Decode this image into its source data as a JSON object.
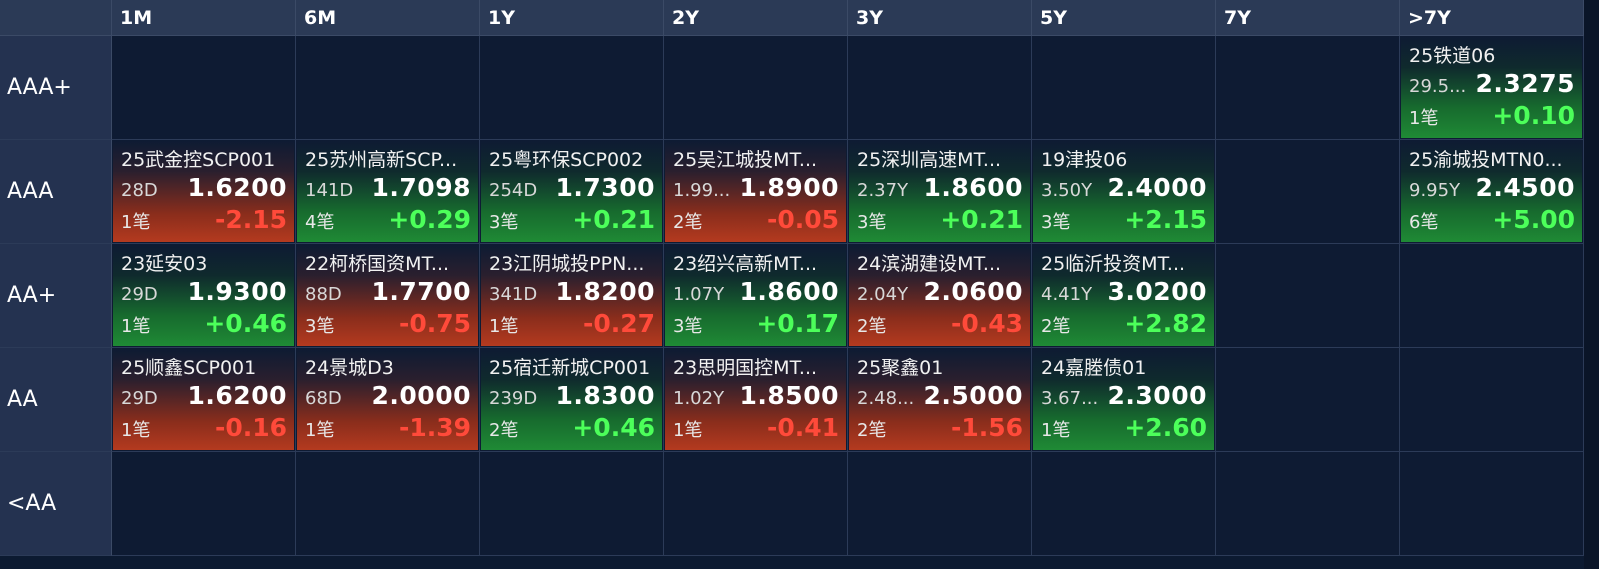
{
  "columns": [
    "1M",
    "6M",
    "1Y",
    "2Y",
    "3Y",
    "5Y",
    "7Y",
    ">7Y"
  ],
  "rows": [
    {
      "label": "AAA+",
      "cells": [
        null,
        null,
        null,
        null,
        null,
        null,
        null,
        {
          "name": "25铁道06",
          "term": "29.5...",
          "yield": "2.3275",
          "count": "1笔",
          "change": "+0.10",
          "dir": "up"
        }
      ]
    },
    {
      "label": "AAA",
      "cells": [
        {
          "name": "25武金控SCP001",
          "term": "28D",
          "yield": "1.6200",
          "count": "1笔",
          "change": "-2.15",
          "dir": "down"
        },
        {
          "name": "25苏州高新SCP...",
          "term": "141D",
          "yield": "1.7098",
          "count": "4笔",
          "change": "+0.29",
          "dir": "up"
        },
        {
          "name": "25粤环保SCP002",
          "term": "254D",
          "yield": "1.7300",
          "count": "3笔",
          "change": "+0.21",
          "dir": "up"
        },
        {
          "name": "25吴江城投MT...",
          "term": "1.99...",
          "yield": "1.8900",
          "count": "2笔",
          "change": "-0.05",
          "dir": "down"
        },
        {
          "name": "25深圳高速MT...",
          "term": "2.37Y",
          "yield": "1.8600",
          "count": "3笔",
          "change": "+0.21",
          "dir": "up"
        },
        {
          "name": "19津投06",
          "term": "3.50Y",
          "yield": "2.4000",
          "count": "3笔",
          "change": "+2.15",
          "dir": "up"
        },
        null,
        {
          "name": "25渝城投MTN0...",
          "term": "9.95Y",
          "yield": "2.4500",
          "count": "6笔",
          "change": "+5.00",
          "dir": "up"
        }
      ]
    },
    {
      "label": "AA+",
      "cells": [
        {
          "name": "23延安03",
          "term": "29D",
          "yield": "1.9300",
          "count": "1笔",
          "change": "+0.46",
          "dir": "up"
        },
        {
          "name": "22柯桥国资MT...",
          "term": "88D",
          "yield": "1.7700",
          "count": "3笔",
          "change": "-0.75",
          "dir": "down"
        },
        {
          "name": "23江阴城投PPN...",
          "term": "341D",
          "yield": "1.8200",
          "count": "1笔",
          "change": "-0.27",
          "dir": "down"
        },
        {
          "name": "23绍兴高新MT...",
          "term": "1.07Y",
          "yield": "1.8600",
          "count": "3笔",
          "change": "+0.17",
          "dir": "up"
        },
        {
          "name": "24滨湖建设MT...",
          "term": "2.04Y",
          "yield": "2.0600",
          "count": "2笔",
          "change": "-0.43",
          "dir": "down"
        },
        {
          "name": "25临沂投资MT...",
          "term": "4.41Y",
          "yield": "3.0200",
          "count": "2笔",
          "change": "+2.82",
          "dir": "up"
        },
        null,
        null
      ]
    },
    {
      "label": "AA",
      "cells": [
        {
          "name": "25顺鑫SCP001",
          "term": "29D",
          "yield": "1.6200",
          "count": "1笔",
          "change": "-0.16",
          "dir": "down"
        },
        {
          "name": "24景城D3",
          "term": "68D",
          "yield": "2.0000",
          "count": "1笔",
          "change": "-1.39",
          "dir": "down"
        },
        {
          "name": "25宿迁新城CP001",
          "term": "239D",
          "yield": "1.8300",
          "count": "2笔",
          "change": "+0.46",
          "dir": "up"
        },
        {
          "name": "23思明国控MT...",
          "term": "1.02Y",
          "yield": "1.8500",
          "count": "1笔",
          "change": "-0.41",
          "dir": "down"
        },
        {
          "name": "25聚鑫01",
          "term": "2.48...",
          "yield": "2.5000",
          "count": "2笔",
          "change": "-1.56",
          "dir": "down"
        },
        {
          "name": "24嘉塍债01",
          "term": "3.67...",
          "yield": "2.3000",
          "count": "1笔",
          "change": "+2.60",
          "dir": "up"
        },
        null,
        null
      ]
    },
    {
      "label": "<AA",
      "cells": [
        null,
        null,
        null,
        null,
        null,
        null,
        null,
        null
      ]
    }
  ]
}
